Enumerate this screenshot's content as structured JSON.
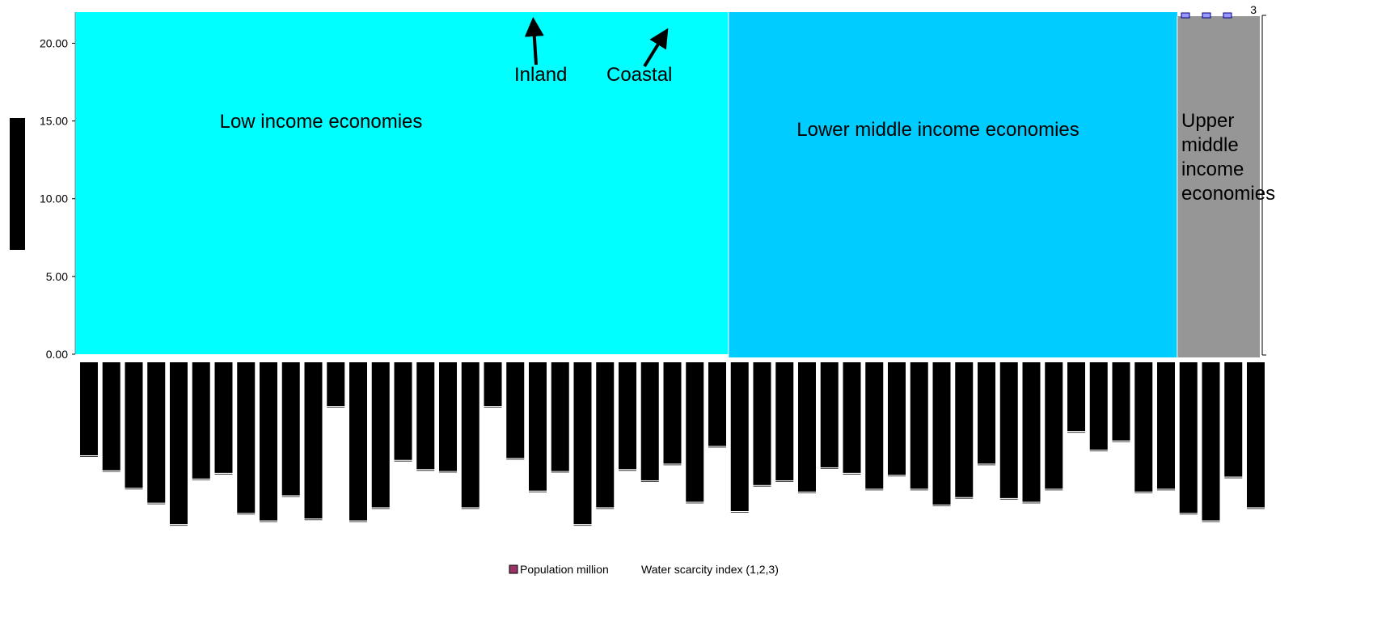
{
  "chart_data": {
    "type": "bar",
    "y_left": {
      "ticks": [
        "0.00",
        "5.00",
        "10.00",
        "15.00",
        "20.00"
      ],
      "range": [
        0,
        22
      ]
    },
    "y_right": {
      "ticks": [
        "3"
      ],
      "range": [
        0,
        3
      ]
    },
    "regions": [
      {
        "label": "Low income economies",
        "lines": [
          "Low income economies"
        ],
        "color": "#00ffff",
        "start": 0,
        "count": 29
      },
      {
        "label": "Lower middle income economies",
        "lines": [
          "Lower middle income economies"
        ],
        "color": "#00ccff",
        "start": 29,
        "count": 20
      },
      {
        "label": "Upper middle income economies",
        "lines": [
          "Upper",
          "middle",
          "income",
          "economies"
        ],
        "color": "#969696",
        "start": 49,
        "count": 4
      }
    ],
    "annotations": [
      {
        "label": "Inland",
        "bar_index": 20
      },
      {
        "label": "Coastal",
        "bar_index": 25
      }
    ],
    "series": [
      {
        "name": "Population million",
        "color": "#993366"
      },
      {
        "name": "Water scarcity index (1,2,3)",
        "color": "#000000"
      }
    ],
    "bar_series_name": "Population million",
    "values": [
      100,
      116,
      135,
      151,
      174,
      125,
      119,
      162,
      170,
      143,
      168,
      47,
      170,
      156,
      105,
      115,
      117,
      156,
      47,
      103,
      138,
      117,
      174,
      156,
      115,
      127,
      109,
      150,
      90,
      160,
      132,
      127,
      139,
      113,
      119,
      136,
      121,
      136,
      153,
      145,
      109,
      146,
      150,
      136,
      74,
      94,
      84,
      139,
      136,
      162,
      170,
      123,
      156
    ],
    "bar_values_max": 200
  }
}
